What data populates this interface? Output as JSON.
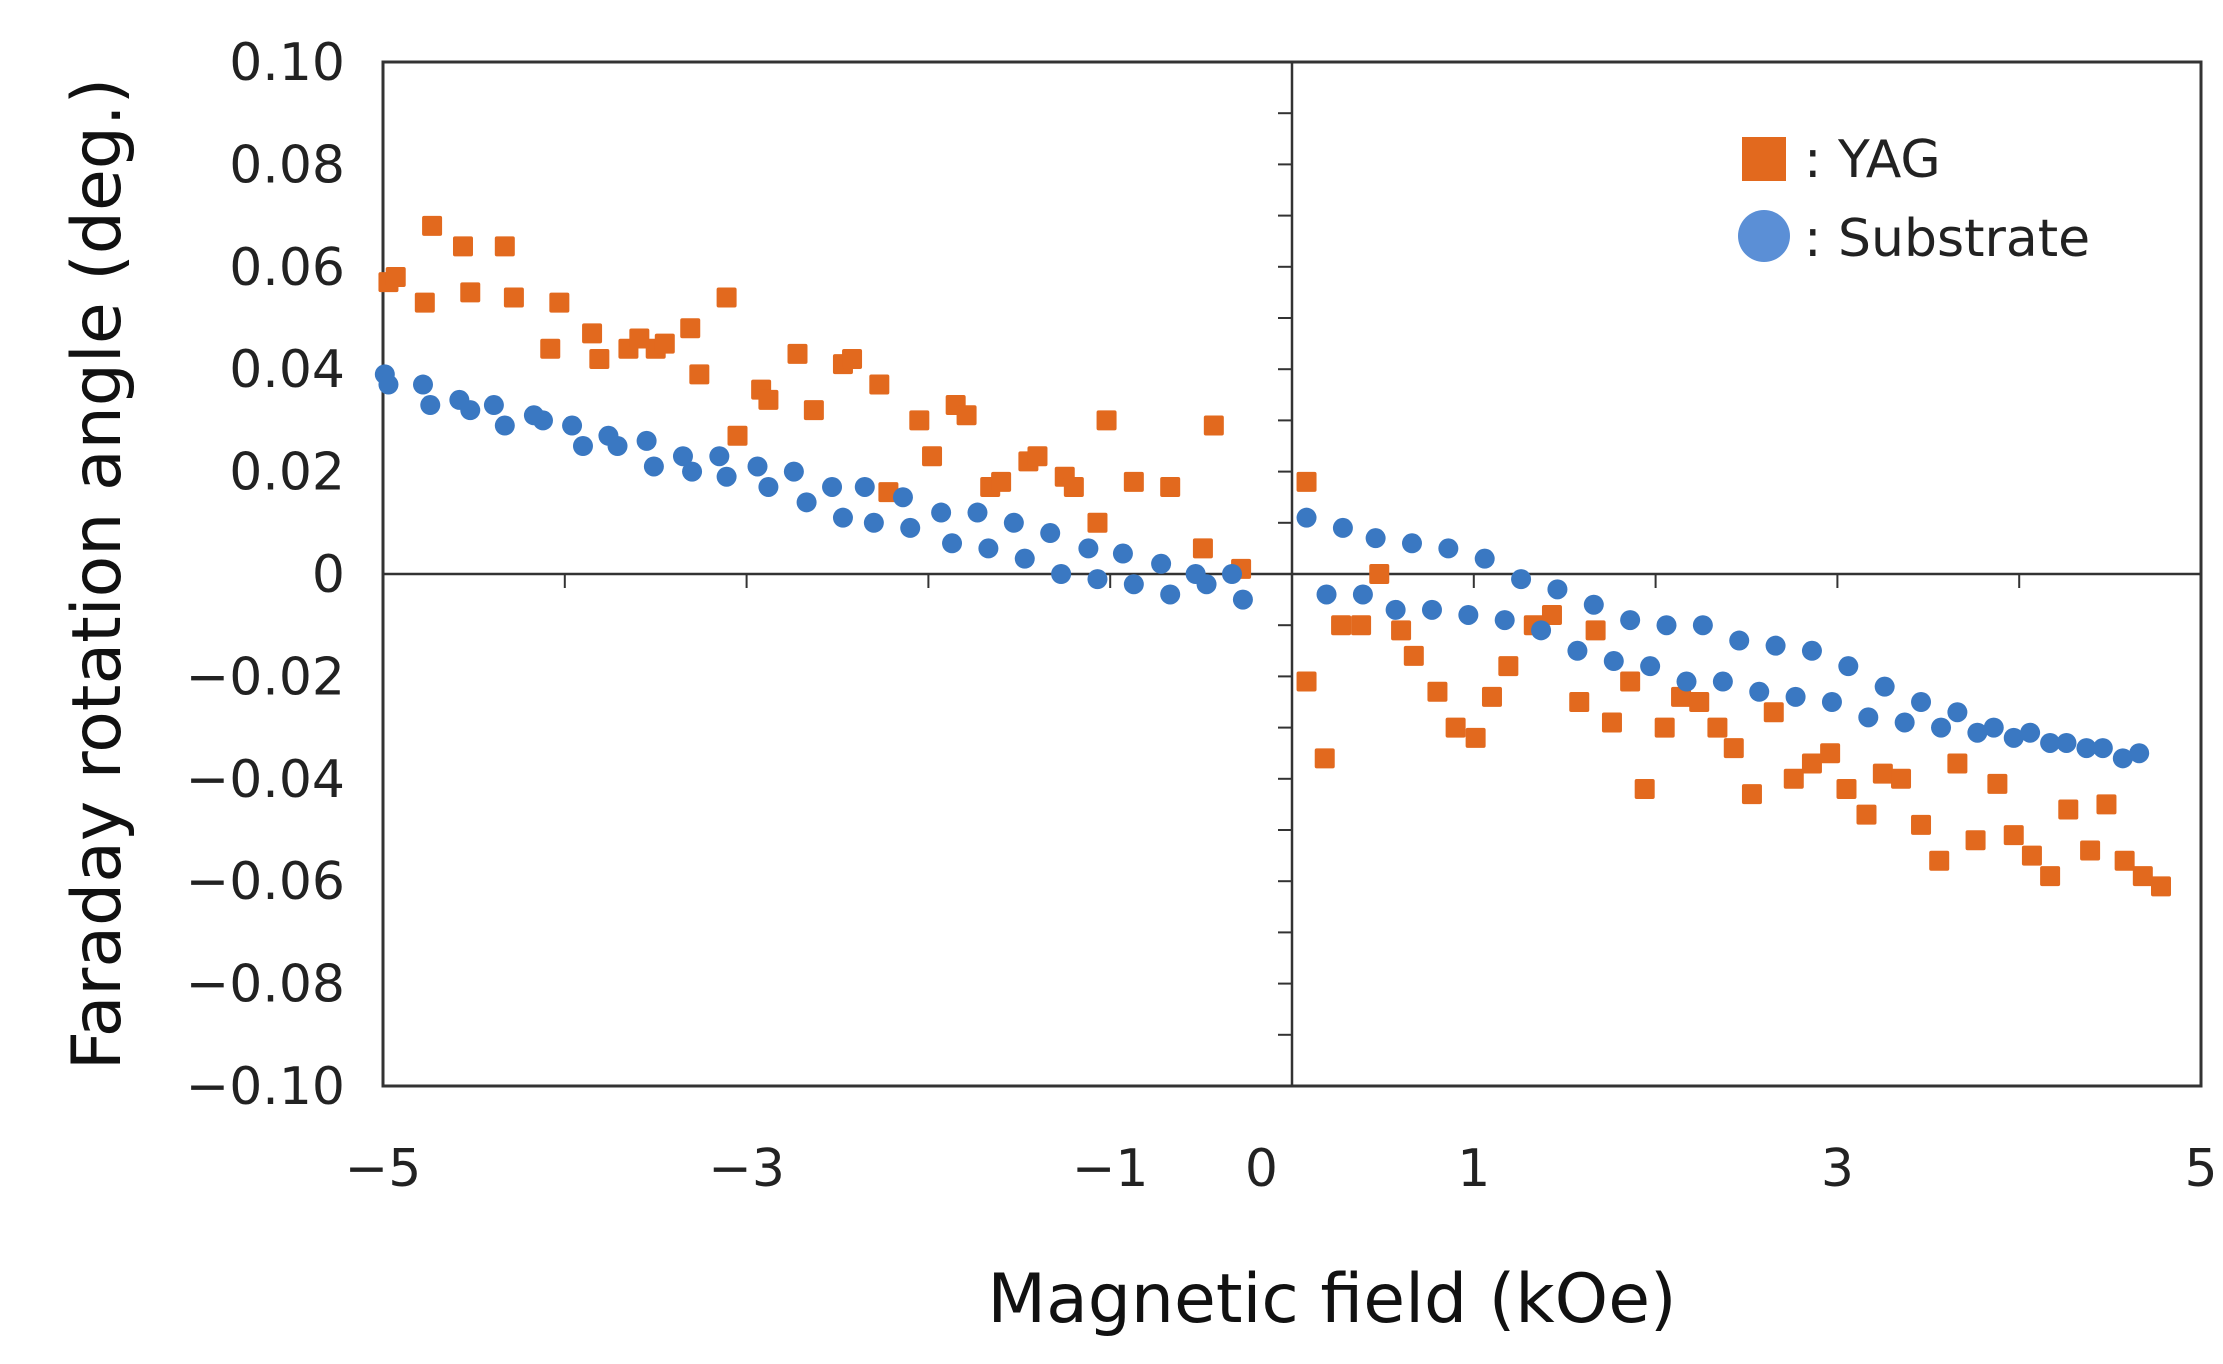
{
  "chart_data": {
    "type": "scatter",
    "title": "",
    "xlabel": "Magnetic field (kOe)",
    "ylabel": "Faraday rotation angle (deg.)",
    "xlim": [
      -5,
      5
    ],
    "ylim": [
      -0.1,
      0.1
    ],
    "x_tick_labels": [
      {
        "value": -5,
        "label": "−5"
      },
      {
        "value": -3,
        "label": "−3"
      },
      {
        "value": -1,
        "label": "−1"
      },
      {
        "value": 0,
        "label": "0"
      },
      {
        "value": 1,
        "label": "1"
      },
      {
        "value": 3,
        "label": "3"
      },
      {
        "value": 5,
        "label": "5"
      }
    ],
    "y_tick_labels": [
      {
        "value": 0.1,
        "label": "0.10"
      },
      {
        "value": 0.08,
        "label": "0.08"
      },
      {
        "value": 0.06,
        "label": "0.06"
      },
      {
        "value": 0.04,
        "label": "0.04"
      },
      {
        "value": 0.02,
        "label": "0.02"
      },
      {
        "value": 0,
        "label": "0"
      },
      {
        "value": -0.02,
        "label": "−0.02"
      },
      {
        "value": -0.04,
        "label": "−0.04"
      },
      {
        "value": -0.06,
        "label": "−0.06"
      },
      {
        "value": -0.08,
        "label": "−0.08"
      },
      {
        "value": -0.1,
        "label": "−0.10"
      }
    ],
    "legend_position": "top-right",
    "grid": false,
    "series": [
      {
        "name": ": YAG",
        "marker": "square",
        "color": "#E2691E",
        "points": [
          [
            -4.97,
            0.057
          ],
          [
            -4.93,
            0.058
          ],
          [
            -4.77,
            0.053
          ],
          [
            -4.73,
            0.068
          ],
          [
            -4.56,
            0.064
          ],
          [
            -4.52,
            0.055
          ],
          [
            -4.33,
            0.064
          ],
          [
            -4.28,
            0.054
          ],
          [
            -4.08,
            0.044
          ],
          [
            -4.03,
            0.053
          ],
          [
            -3.85,
            0.047
          ],
          [
            -3.81,
            0.042
          ],
          [
            -3.65,
            0.044
          ],
          [
            -3.59,
            0.046
          ],
          [
            -3.5,
            0.044
          ],
          [
            -3.45,
            0.045
          ],
          [
            -3.31,
            0.048
          ],
          [
            -3.26,
            0.039
          ],
          [
            -3.11,
            0.054
          ],
          [
            -3.05,
            0.027
          ],
          [
            -2.92,
            0.036
          ],
          [
            -2.88,
            0.034
          ],
          [
            -2.72,
            0.043
          ],
          [
            -2.63,
            0.032
          ],
          [
            -2.47,
            0.041
          ],
          [
            -2.42,
            0.042
          ],
          [
            -2.27,
            0.037
          ],
          [
            -2.22,
            0.016
          ],
          [
            -2.05,
            0.03
          ],
          [
            -1.98,
            0.023
          ],
          [
            -1.85,
            0.033
          ],
          [
            -1.79,
            0.031
          ],
          [
            -1.66,
            0.017
          ],
          [
            -1.6,
            0.018
          ],
          [
            -1.45,
            0.022
          ],
          [
            -1.4,
            0.023
          ],
          [
            -1.25,
            0.019
          ],
          [
            -1.2,
            0.017
          ],
          [
            -1.07,
            0.01
          ],
          [
            -1.02,
            0.03
          ],
          [
            -0.87,
            0.018
          ],
          [
            -0.67,
            0.017
          ],
          [
            -0.49,
            0.005
          ],
          [
            -0.43,
            0.029
          ],
          [
            -0.28,
            0.001
          ],
          [
            0.08,
            0.018
          ],
          [
            0.08,
            -0.021
          ],
          [
            0.18,
            -0.036
          ],
          [
            0.27,
            -0.01
          ],
          [
            0.38,
            -0.01
          ],
          [
            0.48,
            0.0
          ],
          [
            0.6,
            -0.011
          ],
          [
            0.67,
            -0.016
          ],
          [
            0.8,
            -0.023
          ],
          [
            0.9,
            -0.03
          ],
          [
            1.01,
            -0.032
          ],
          [
            1.1,
            -0.024
          ],
          [
            1.19,
            -0.018
          ],
          [
            1.33,
            -0.01
          ],
          [
            1.43,
            -0.008
          ],
          [
            1.58,
            -0.025
          ],
          [
            1.67,
            -0.011
          ],
          [
            1.76,
            -0.029
          ],
          [
            1.86,
            -0.021
          ],
          [
            1.94,
            -0.042
          ],
          [
            2.05,
            -0.03
          ],
          [
            2.14,
            -0.024
          ],
          [
            2.24,
            -0.025
          ],
          [
            2.34,
            -0.03
          ],
          [
            2.43,
            -0.034
          ],
          [
            2.53,
            -0.043
          ],
          [
            2.65,
            -0.027
          ],
          [
            2.76,
            -0.04
          ],
          [
            2.86,
            -0.037
          ],
          [
            2.96,
            -0.035
          ],
          [
            3.05,
            -0.042
          ],
          [
            3.16,
            -0.047
          ],
          [
            3.25,
            -0.039
          ],
          [
            3.35,
            -0.04
          ],
          [
            3.46,
            -0.049
          ],
          [
            3.56,
            -0.056
          ],
          [
            3.66,
            -0.037
          ],
          [
            3.76,
            -0.052
          ],
          [
            3.88,
            -0.041
          ],
          [
            3.97,
            -0.051
          ],
          [
            4.07,
            -0.055
          ],
          [
            4.17,
            -0.059
          ],
          [
            4.27,
            -0.046
          ],
          [
            4.39,
            -0.054
          ],
          [
            4.48,
            -0.045
          ],
          [
            4.58,
            -0.056
          ],
          [
            4.68,
            -0.059
          ],
          [
            4.78,
            -0.061
          ]
        ]
      },
      {
        "name": ": Substrate",
        "marker": "circle",
        "color": "#3A78C2",
        "points": [
          [
            -4.99,
            0.039
          ],
          [
            -4.97,
            0.037
          ],
          [
            -4.78,
            0.037
          ],
          [
            -4.74,
            0.033
          ],
          [
            -4.58,
            0.034
          ],
          [
            -4.52,
            0.032
          ],
          [
            -4.39,
            0.033
          ],
          [
            -4.33,
            0.029
          ],
          [
            -4.17,
            0.031
          ],
          [
            -4.12,
            0.03
          ],
          [
            -3.96,
            0.029
          ],
          [
            -3.9,
            0.025
          ],
          [
            -3.76,
            0.027
          ],
          [
            -3.71,
            0.025
          ],
          [
            -3.55,
            0.026
          ],
          [
            -3.51,
            0.021
          ],
          [
            -3.35,
            0.023
          ],
          [
            -3.3,
            0.02
          ],
          [
            -3.15,
            0.023
          ],
          [
            -3.11,
            0.019
          ],
          [
            -2.94,
            0.021
          ],
          [
            -2.88,
            0.017
          ],
          [
            -2.74,
            0.02
          ],
          [
            -2.67,
            0.014
          ],
          [
            -2.53,
            0.017
          ],
          [
            -2.47,
            0.011
          ],
          [
            -2.35,
            0.017
          ],
          [
            -2.3,
            0.01
          ],
          [
            -2.14,
            0.015
          ],
          [
            -2.1,
            0.009
          ],
          [
            -1.93,
            0.012
          ],
          [
            -1.87,
            0.006
          ],
          [
            -1.73,
            0.012
          ],
          [
            -1.67,
            0.005
          ],
          [
            -1.53,
            0.01
          ],
          [
            -1.47,
            0.003
          ],
          [
            -1.33,
            0.008
          ],
          [
            -1.27,
            0.0
          ],
          [
            -1.12,
            0.005
          ],
          [
            -1.07,
            -0.001
          ],
          [
            -0.93,
            0.004
          ],
          [
            -0.87,
            -0.002
          ],
          [
            -0.72,
            0.002
          ],
          [
            -0.67,
            -0.004
          ],
          [
            -0.53,
            0.0
          ],
          [
            -0.47,
            -0.002
          ],
          [
            -0.33,
            0.0
          ],
          [
            -0.27,
            -0.005
          ],
          [
            0.08,
            0.011
          ],
          [
            0.19,
            -0.004
          ],
          [
            0.28,
            0.009
          ],
          [
            0.39,
            -0.004
          ],
          [
            0.46,
            0.007
          ],
          [
            0.57,
            -0.007
          ],
          [
            0.66,
            0.006
          ],
          [
            0.77,
            -0.007
          ],
          [
            0.86,
            0.005
          ],
          [
            0.97,
            -0.008
          ],
          [
            1.06,
            0.003
          ],
          [
            1.17,
            -0.009
          ],
          [
            1.26,
            -0.001
          ],
          [
            1.37,
            -0.011
          ],
          [
            1.46,
            -0.003
          ],
          [
            1.57,
            -0.015
          ],
          [
            1.66,
            -0.006
          ],
          [
            1.77,
            -0.017
          ],
          [
            1.86,
            -0.009
          ],
          [
            1.97,
            -0.018
          ],
          [
            2.06,
            -0.01
          ],
          [
            2.17,
            -0.021
          ],
          [
            2.26,
            -0.01
          ],
          [
            2.37,
            -0.021
          ],
          [
            2.46,
            -0.013
          ],
          [
            2.57,
            -0.023
          ],
          [
            2.66,
            -0.014
          ],
          [
            2.77,
            -0.024
          ],
          [
            2.86,
            -0.015
          ],
          [
            2.97,
            -0.025
          ],
          [
            3.06,
            -0.018
          ],
          [
            3.17,
            -0.028
          ],
          [
            3.26,
            -0.022
          ],
          [
            3.37,
            -0.029
          ],
          [
            3.46,
            -0.025
          ],
          [
            3.57,
            -0.03
          ],
          [
            3.66,
            -0.027
          ],
          [
            3.77,
            -0.031
          ],
          [
            3.86,
            -0.03
          ],
          [
            3.97,
            -0.032
          ],
          [
            4.06,
            -0.031
          ],
          [
            4.17,
            -0.033
          ],
          [
            4.26,
            -0.033
          ],
          [
            4.37,
            -0.034
          ],
          [
            4.46,
            -0.034
          ],
          [
            4.57,
            -0.036
          ],
          [
            4.66,
            -0.035
          ]
        ]
      }
    ]
  }
}
